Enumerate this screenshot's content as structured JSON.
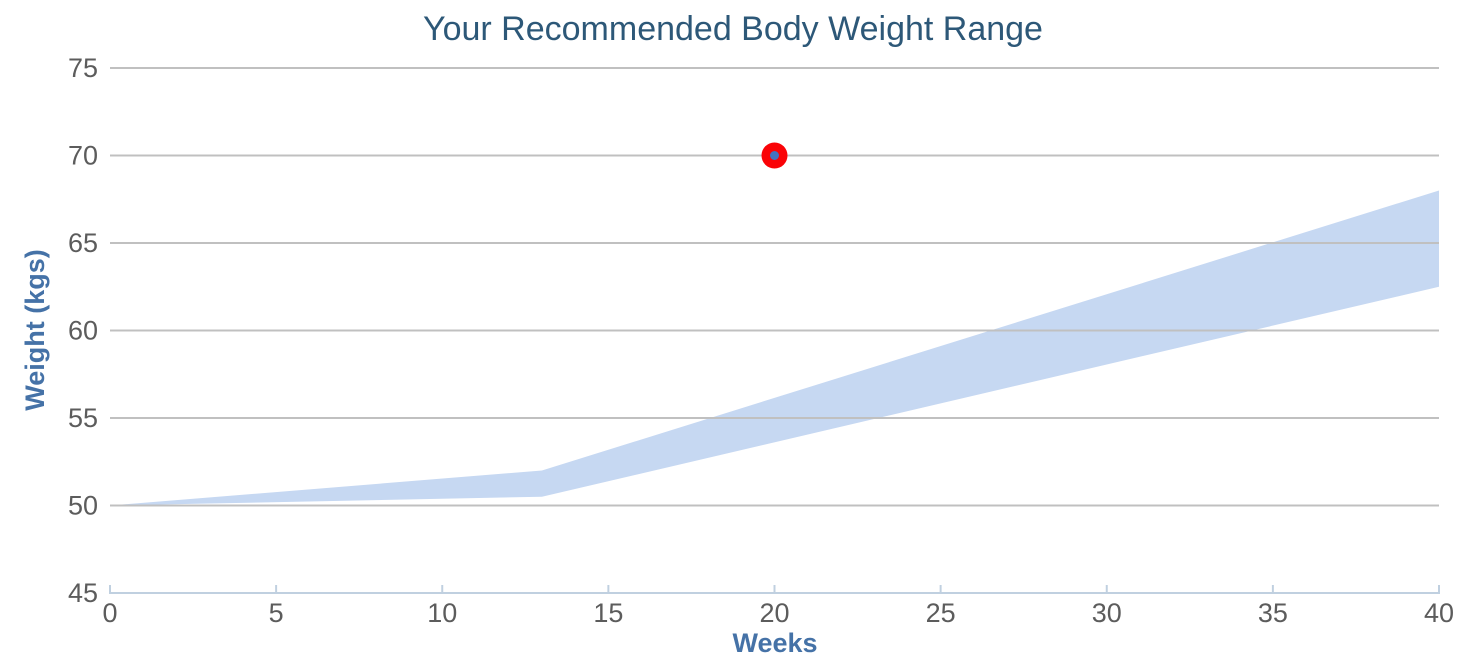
{
  "chart_data": {
    "type": "area",
    "title": "Your Recommended Body Weight Range",
    "xlabel": "Weeks",
    "ylabel": "Weight (kgs)",
    "xlim": [
      0,
      40
    ],
    "ylim": [
      45,
      75
    ],
    "x_ticks": [
      0,
      5,
      10,
      15,
      20,
      25,
      30,
      35,
      40
    ],
    "y_ticks": [
      45,
      50,
      55,
      60,
      65,
      70,
      75
    ],
    "grid": "horizontal-only",
    "legend": "none",
    "background": "#ffffff",
    "series": [
      {
        "name": "recommended-weight-range",
        "type": "arearange",
        "x": [
          0,
          13,
          40
        ],
        "upper": [
          50,
          52,
          68
        ],
        "lower": [
          50,
          50.5,
          62.5
        ],
        "fill_color": "#c6d8f2"
      },
      {
        "name": "current-weight-point",
        "type": "scatter",
        "points": [
          {
            "x": 20,
            "y": 70
          }
        ],
        "marker_outer_color": "#fa0307",
        "marker_inner_color": "#4273c0"
      }
    ],
    "style": {
      "title_color": "#2d5878",
      "axis_title_color": "#4572a7",
      "tick_label_color": "#5c5c5c",
      "gridline_color": "#c0c0c0",
      "x_axis_line_color": "#c0d0e0"
    }
  }
}
